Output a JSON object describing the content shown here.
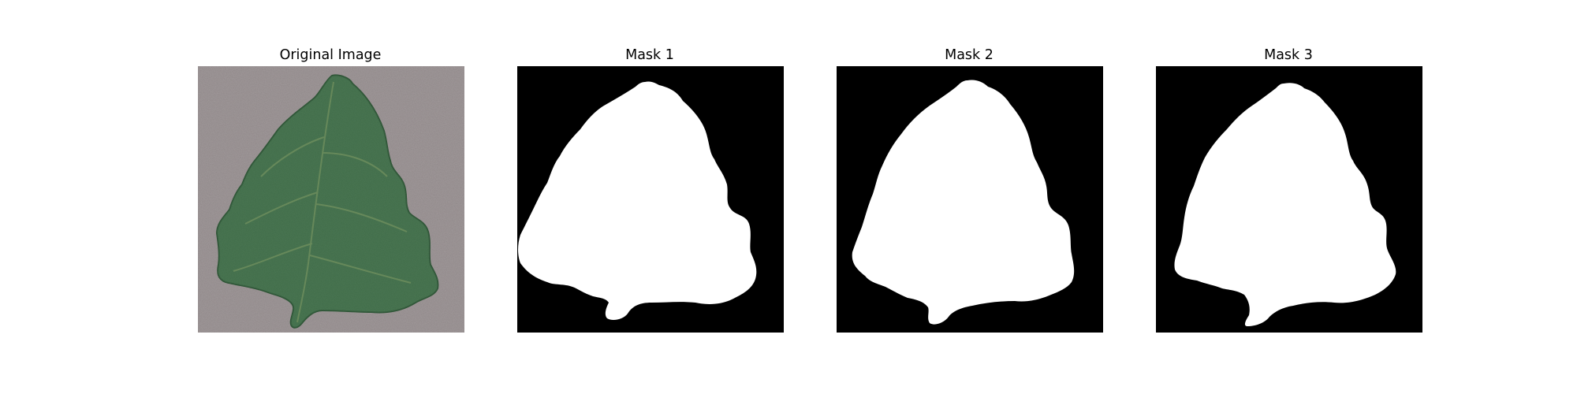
{
  "figure": {
    "panels": [
      {
        "title": "Original Image",
        "kind": "photo"
      },
      {
        "title": "Mask 1",
        "kind": "mask"
      },
      {
        "title": "Mask 2",
        "kind": "mask"
      },
      {
        "title": "Mask 3",
        "kind": "mask"
      }
    ]
  },
  "colors": {
    "background": "#ffffff",
    "photo_background": "#8f8788",
    "leaf_fill": "#3e6a46",
    "leaf_edge": "#2d5435",
    "leaf_vein": "#6f8f5e",
    "mask_background": "#000000",
    "mask_foreground": "#ffffff"
  }
}
